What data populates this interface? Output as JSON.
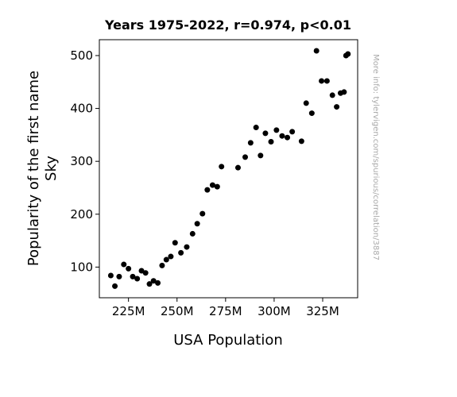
{
  "chart_data": {
    "type": "scatter",
    "title": "Years 1975-2022, r=0.974, p<0.01",
    "xlabel": "USA Population",
    "ylabel_lines": [
      "Popularity of the first name",
      "Sky"
    ],
    "watermark": "More info: tylervigen.com/spurious/correlation/3887",
    "xlim": [
      210,
      343
    ],
    "ylim": [
      42,
      530
    ],
    "x_ticks": [
      {
        "value": 225,
        "label": "225M"
      },
      {
        "value": 250,
        "label": "250M"
      },
      {
        "value": 275,
        "label": "275M"
      },
      {
        "value": 300,
        "label": "300M"
      },
      {
        "value": 325,
        "label": "325M"
      }
    ],
    "y_ticks": [
      {
        "value": 100,
        "label": "100"
      },
      {
        "value": 200,
        "label": "200"
      },
      {
        "value": 300,
        "label": "300"
      },
      {
        "value": 400,
        "label": "400"
      },
      {
        "value": 500,
        "label": "500"
      }
    ],
    "grid": false,
    "point_color": "#000000",
    "x_unit": "millions",
    "points": [
      [
        215.9,
        84
      ],
      [
        218.0,
        64
      ],
      [
        220.2,
        82
      ],
      [
        222.6,
        105
      ],
      [
        225.0,
        97
      ],
      [
        227.2,
        82
      ],
      [
        229.5,
        78
      ],
      [
        231.7,
        93
      ],
      [
        233.8,
        89
      ],
      [
        235.8,
        68
      ],
      [
        237.9,
        74
      ],
      [
        240.1,
        70
      ],
      [
        242.3,
        103
      ],
      [
        244.5,
        114
      ],
      [
        246.8,
        120
      ],
      [
        249.0,
        146
      ],
      [
        252.0,
        127
      ],
      [
        255.0,
        138
      ],
      [
        258.0,
        163
      ],
      [
        260.4,
        182
      ],
      [
        263.1,
        201
      ],
      [
        265.6,
        246
      ],
      [
        268.3,
        255
      ],
      [
        270.7,
        252
      ],
      [
        272.9,
        290
      ],
      [
        281.4,
        288
      ],
      [
        285.1,
        308
      ],
      [
        287.9,
        335
      ],
      [
        290.7,
        364
      ],
      [
        293.0,
        311
      ],
      [
        295.5,
        353
      ],
      [
        298.4,
        337
      ],
      [
        301.2,
        359
      ],
      [
        304.1,
        348
      ],
      [
        306.8,
        345
      ],
      [
        309.3,
        356
      ],
      [
        314.1,
        338
      ],
      [
        316.5,
        410
      ],
      [
        319.4,
        391
      ],
      [
        321.8,
        509
      ],
      [
        324.4,
        452
      ],
      [
        327.2,
        452
      ],
      [
        330.0,
        425
      ],
      [
        332.2,
        403
      ],
      [
        334.2,
        429
      ],
      [
        336.0,
        431
      ],
      [
        337.0,
        500
      ],
      [
        338.0,
        503
      ]
    ]
  }
}
